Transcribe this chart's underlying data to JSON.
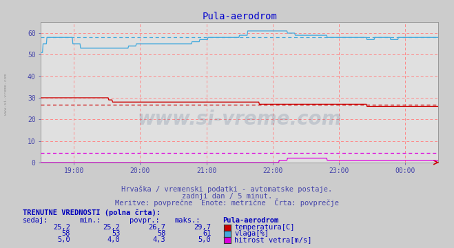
{
  "title": "Pula-aerodrom",
  "title_color": "#0000cc",
  "bg_color": "#cccccc",
  "plot_bg_color": "#e0e0e0",
  "grid_color": "#ff8888",
  "x_tick_labels": [
    "19:00",
    "20:00",
    "21:00",
    "22:00",
    "23:00",
    "00:00"
  ],
  "x_tick_positions": [
    60,
    180,
    300,
    420,
    540,
    660
  ],
  "ylim": [
    0,
    65
  ],
  "yticks": [
    0,
    10,
    20,
    30,
    40,
    50,
    60
  ],
  "n_points": 721,
  "temp_color": "#cc0000",
  "humidity_color": "#44aadd",
  "wind_color": "#dd00dd",
  "temp_avg": 26.7,
  "humidity_avg": 58.0,
  "wind_avg": 4.3,
  "subtitle1": "Hrvaška / vremenski podatki - avtomatske postaje.",
  "subtitle2": "zadnji dan / 5 minut.",
  "subtitle3": "Meritve: povprečne  Enote: metrične  Črta: povprečje",
  "table_header": "TRENUTNE VREDNOSTI (polna črta):",
  "col_headers": [
    "sedaj:",
    "min.:",
    "povpr.:",
    "maks.:",
    "Pula-aerodrom"
  ],
  "row1": [
    "25,2",
    "25,2",
    "26,7",
    "29,7"
  ],
  "row2": [
    "58",
    "53",
    "58",
    "61"
  ],
  "row3": [
    "5,0",
    "4,0",
    "4,3",
    "5,0"
  ],
  "legend_labels": [
    "temperatura[C]",
    "vlaga[%]",
    "hitrost vetra[m/s]"
  ],
  "legend_colors": [
    "#cc0000",
    "#44aadd",
    "#dd00dd"
  ],
  "watermark": "www.si-vreme.com",
  "left_label": "www.si-vreme.com",
  "text_color": "#4444aa"
}
